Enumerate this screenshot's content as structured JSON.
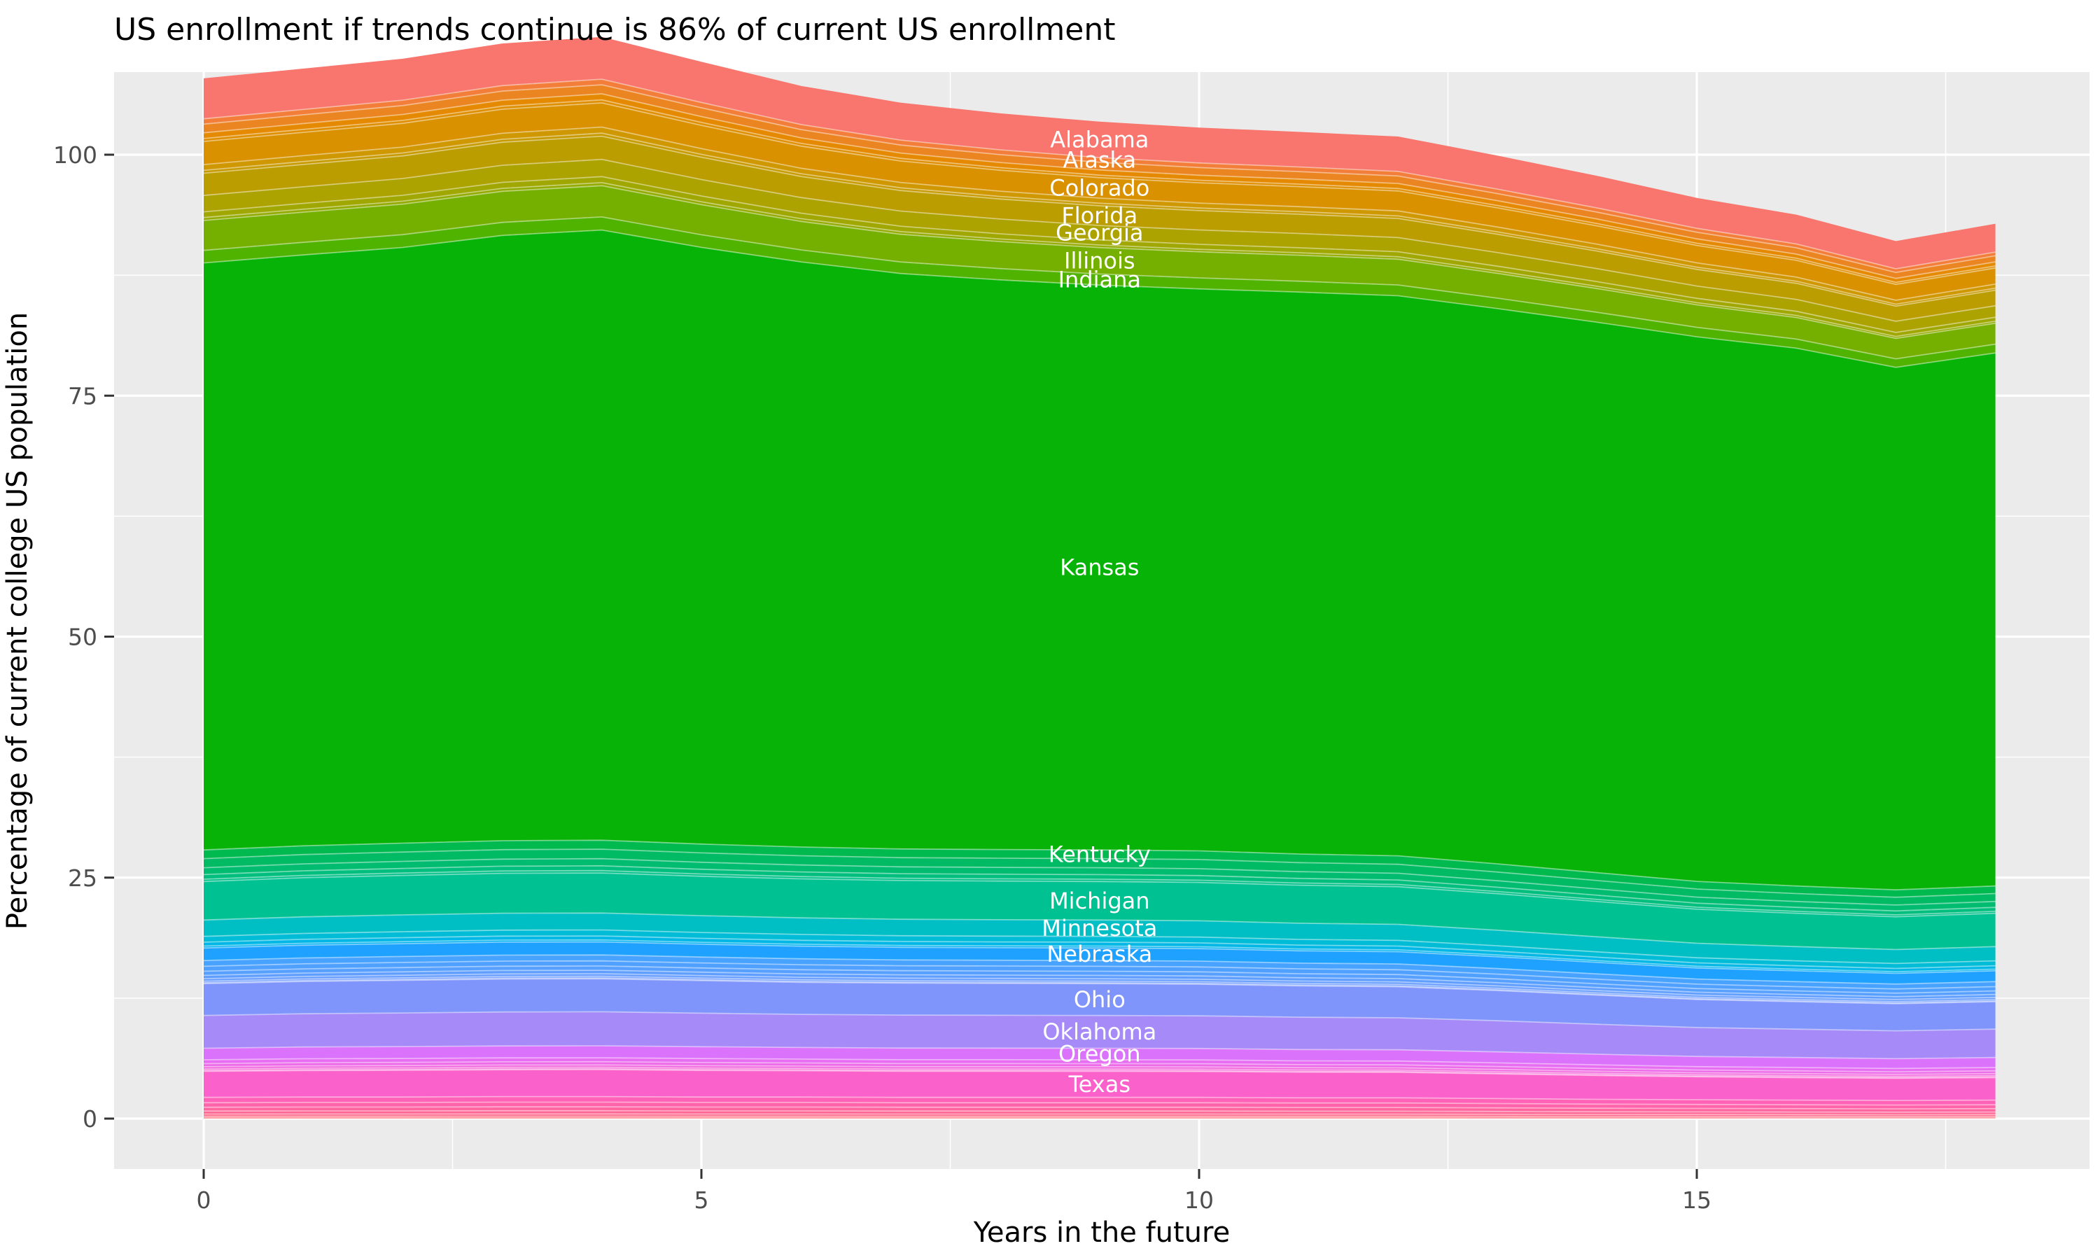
{
  "title": "US enrollment if trends continue is 86% of current US enrollment",
  "axes": {
    "x": {
      "title": "Years in the future",
      "major_ticks": [
        0,
        5,
        10,
        15
      ],
      "minor_ticks": [
        2.5,
        7.5,
        12.5,
        17.5
      ],
      "data_range": [
        0,
        18
      ]
    },
    "y": {
      "title": "Percentage of current college US population",
      "major_ticks": [
        0,
        25,
        50,
        75,
        100
      ],
      "minor_ticks": [
        12.5,
        37.5,
        62.5,
        87.5
      ]
    }
  },
  "theme": {
    "panel_background": "#EBEBEB",
    "gridline_color": "#FFFFFF",
    "tick_mark_color": "#333333",
    "tick_label_color": "#4D4D4D",
    "title_color": "#000000",
    "band_label_color": "#FFFFFF"
  },
  "chart_data": {
    "type": "area",
    "stacked": true,
    "title": "US enrollment if trends continue is 86% of current US enrollment",
    "xlabel": "Years in the future",
    "ylabel": "Percentage of current college US population",
    "x": [
      0,
      1,
      2,
      3,
      4,
      5,
      6,
      7,
      8,
      9,
      10,
      11,
      12,
      13,
      14,
      15,
      16,
      17,
      18
    ],
    "ylim_shown": [
      -5,
      108
    ],
    "grid": true,
    "legend_position": "none (labels drawn inside bands)",
    "label_anchor_x": 9,
    "final_total_pct": 86,
    "series_order": "bottom to top",
    "series": [
      {
        "id": "thin-bands-below-texas",
        "label": null,
        "stripe_count": 7,
        "colors": [
          "#FF6E74",
          "#FF6C80",
          "#FF6A8B",
          "#FF6895",
          "#FF66A0",
          "#FF64AB",
          "#FF62B6"
        ],
        "values": [
          0.55,
          0.56,
          0.56,
          0.57,
          0.57,
          0.56,
          0.56,
          0.55,
          0.55,
          0.55,
          0.55,
          0.54,
          0.54,
          0.52,
          0.5,
          0.49,
          0.48,
          0.47,
          0.48
        ]
      },
      {
        "id": "texas",
        "label": "Texas",
        "stripe_count": 1,
        "colors": [
          "#FB61CB"
        ],
        "values": [
          2.7,
          2.74,
          2.77,
          2.79,
          2.8,
          2.76,
          2.73,
          2.71,
          2.71,
          2.7,
          2.69,
          2.66,
          2.64,
          2.56,
          2.47,
          2.38,
          2.33,
          2.3,
          2.33
        ]
      },
      {
        "id": "thin-bands-between-texas-and-oregon",
        "label": null,
        "stripe_count": 5,
        "colors": [
          "#FA63D0",
          "#F665D6",
          "#F268DE",
          "#ED6BE8",
          "#E76EF2"
        ],
        "values": [
          0.4,
          0.41,
          0.41,
          0.41,
          0.41,
          0.41,
          0.4,
          0.4,
          0.4,
          0.4,
          0.4,
          0.39,
          0.39,
          0.38,
          0.37,
          0.35,
          0.35,
          0.34,
          0.35
        ]
      },
      {
        "id": "oregon",
        "label": "Oregon",
        "stripe_count": 1,
        "colors": [
          "#DB72FB"
        ],
        "values": [
          1.2,
          1.22,
          1.23,
          1.24,
          1.24,
          1.23,
          1.21,
          1.21,
          1.2,
          1.2,
          1.19,
          1.18,
          1.17,
          1.14,
          1.1,
          1.06,
          1.04,
          1.02,
          1.04
        ]
      },
      {
        "id": "oklahoma",
        "label": "Oklahoma",
        "stripe_count": 1,
        "colors": [
          "#A68AF8"
        ],
        "values": [
          3.4,
          3.45,
          3.49,
          3.52,
          3.53,
          3.48,
          3.43,
          3.42,
          3.41,
          3.4,
          3.38,
          3.35,
          3.32,
          3.23,
          3.11,
          3.0,
          2.94,
          2.89,
          2.94
        ]
      },
      {
        "id": "ohio",
        "label": "Ohio",
        "stripe_count": 1,
        "colors": [
          "#7F95FC"
        ],
        "values": [
          3.3,
          3.35,
          3.38,
          3.42,
          3.42,
          3.38,
          3.33,
          3.32,
          3.31,
          3.3,
          3.28,
          3.25,
          3.22,
          3.13,
          3.02,
          2.91,
          2.85,
          2.81,
          2.85
        ]
      },
      {
        "id": "thin-bands-between-ohio-and-nebraska",
        "label": null,
        "stripe_count": 7,
        "colors": [
          "#779AFF",
          "#6F9BFF",
          "#679DFF",
          "#5F9EFF",
          "#57A0FF",
          "#50A1FF",
          "#48A2FF"
        ],
        "values": [
          0.6,
          0.61,
          0.62,
          0.62,
          0.62,
          0.61,
          0.61,
          0.6,
          0.6,
          0.6,
          0.6,
          0.59,
          0.59,
          0.57,
          0.55,
          0.53,
          0.52,
          0.51,
          0.52
        ]
      },
      {
        "id": "nebraska",
        "label": "Nebraska",
        "stripe_count": 1,
        "colors": [
          "#1FA2FF"
        ],
        "values": [
          1.3,
          1.32,
          1.33,
          1.35,
          1.35,
          1.33,
          1.31,
          1.31,
          1.3,
          1.3,
          1.29,
          1.28,
          1.27,
          1.23,
          1.19,
          1.15,
          1.12,
          1.11,
          1.12
        ]
      },
      {
        "id": "thin-bands-between-nebraska-and-minnesota",
        "label": null,
        "stripe_count": 3,
        "colors": [
          "#00B1F2",
          "#00B7E5",
          "#00BCD6"
        ],
        "values": [
          0.6,
          0.61,
          0.62,
          0.62,
          0.62,
          0.61,
          0.61,
          0.6,
          0.6,
          0.6,
          0.6,
          0.59,
          0.59,
          0.57,
          0.55,
          0.53,
          0.52,
          0.51,
          0.52
        ]
      },
      {
        "id": "minnesota",
        "label": "Minnesota",
        "stripe_count": 1,
        "colors": [
          "#00BFC4"
        ],
        "values": [
          1.7,
          1.72,
          1.74,
          1.76,
          1.76,
          1.74,
          1.72,
          1.71,
          1.7,
          1.7,
          1.69,
          1.68,
          1.66,
          1.61,
          1.56,
          1.5,
          1.47,
          1.45,
          1.47
        ]
      },
      {
        "id": "michigan",
        "label": "Michigan",
        "stripe_count": 1,
        "colors": [
          "#00C192"
        ],
        "values": [
          4.0,
          4.06,
          4.1,
          4.14,
          4.15,
          4.09,
          4.04,
          4.02,
          4.01,
          4.0,
          3.98,
          3.94,
          3.91,
          3.79,
          3.66,
          3.53,
          3.46,
          3.4,
          3.46
        ]
      },
      {
        "id": "thin-bands-between-michigan-and-kentucky",
        "label": null,
        "stripe_count": 4,
        "colors": [
          "#00C088",
          "#00BE7D",
          "#00BC71",
          "#00BA64"
        ],
        "values": [
          0.95,
          0.96,
          0.97,
          0.98,
          0.99,
          0.97,
          0.96,
          0.95,
          0.95,
          0.95,
          0.95,
          0.94,
          0.93,
          0.9,
          0.87,
          0.84,
          0.82,
          0.81,
          0.82
        ]
      },
      {
        "id": "kentucky",
        "label": "Kentucky",
        "stripe_count": 1,
        "colors": [
          "#00B94F"
        ],
        "values": [
          0.9,
          0.91,
          0.92,
          0.93,
          0.93,
          0.92,
          0.91,
          0.9,
          0.9,
          0.9,
          0.9,
          0.89,
          0.88,
          0.85,
          0.82,
          0.79,
          0.78,
          0.77,
          0.78
        ]
      },
      {
        "id": "kansas",
        "label": "Kansas",
        "stripe_count": 1,
        "colors": [
          "#08B307"
        ],
        "values": [
          60.9,
          61.3,
          61.8,
          62.8,
          63.3,
          61.9,
          60.7,
          59.7,
          59.1,
          58.6,
          58.3,
          58.3,
          58.1,
          57.6,
          57.1,
          56.5,
          55.8,
          54.2,
          55.3
        ]
      },
      {
        "id": "indiana",
        "label": "Indiana",
        "stripe_count": 1,
        "colors": [
          "#4FB300"
        ],
        "values": [
          1.3,
          1.31,
          1.33,
          1.35,
          1.36,
          1.31,
          1.24,
          1.2,
          1.17,
          1.15,
          1.14,
          1.13,
          1.12,
          1.08,
          1.03,
          0.98,
          0.94,
          0.89,
          0.91
        ]
      },
      {
        "id": "illinois",
        "label": "Illinois",
        "stripe_count": 1,
        "colors": [
          "#75B000"
        ],
        "values": [
          3.1,
          3.13,
          3.17,
          3.22,
          3.24,
          3.12,
          2.96,
          2.87,
          2.8,
          2.74,
          2.71,
          2.69,
          2.67,
          2.57,
          2.46,
          2.33,
          2.24,
          2.12,
          2.17
        ]
      },
      {
        "id": "thin-bands-between-illinois-and-georgia",
        "label": null,
        "stripe_count": 2,
        "colors": [
          "#93AB00",
          "#A0A700"
        ],
        "values": [
          0.6,
          0.61,
          0.61,
          0.62,
          0.63,
          0.6,
          0.57,
          0.56,
          0.54,
          0.53,
          0.52,
          0.52,
          0.52,
          0.5,
          0.48,
          0.45,
          0.43,
          0.41,
          0.42
        ]
      },
      {
        "id": "georgia",
        "label": "Georgia",
        "stripe_count": 1,
        "colors": [
          "#ACA300"
        ],
        "values": [
          1.7,
          1.71,
          1.74,
          1.77,
          1.78,
          1.71,
          1.62,
          1.57,
          1.53,
          1.5,
          1.49,
          1.48,
          1.47,
          1.41,
          1.35,
          1.28,
          1.23,
          1.16,
          1.19
        ]
      },
      {
        "id": "florida",
        "label": "Florida",
        "stripe_count": 1,
        "colors": [
          "#BC9D00"
        ],
        "values": [
          2.3,
          2.32,
          2.35,
          2.39,
          2.41,
          2.31,
          2.19,
          2.13,
          2.08,
          2.04,
          2.01,
          2.0,
          1.98,
          1.9,
          1.82,
          1.73,
          1.67,
          1.57,
          1.61
        ]
      },
      {
        "id": "thin-bands-between-florida-and-colorado",
        "label": null,
        "stripe_count": 2,
        "colors": [
          "#C79A00",
          "#CF9700"
        ],
        "values": [
          0.6,
          0.61,
          0.61,
          0.62,
          0.63,
          0.6,
          0.57,
          0.56,
          0.54,
          0.53,
          0.52,
          0.52,
          0.52,
          0.5,
          0.48,
          0.45,
          0.43,
          0.41,
          0.42
        ]
      },
      {
        "id": "colorado",
        "label": "Colorado",
        "stripe_count": 1,
        "colors": [
          "#DA9100"
        ],
        "values": [
          2.4,
          2.42,
          2.46,
          2.5,
          2.51,
          2.41,
          2.29,
          2.22,
          2.17,
          2.12,
          2.1,
          2.08,
          2.07,
          1.99,
          1.9,
          1.81,
          1.74,
          1.64,
          1.68
        ]
      },
      {
        "id": "thin-bands-between-colorado-and-alaska",
        "label": null,
        "stripe_count": 3,
        "colors": [
          "#DF8E00",
          "#E58A00",
          "#EB8521"
        ],
        "values": [
          0.9,
          0.91,
          0.92,
          0.94,
          0.94,
          0.91,
          0.86,
          0.83,
          0.81,
          0.8,
          0.79,
          0.78,
          0.78,
          0.74,
          0.71,
          0.68,
          0.65,
          0.62,
          0.63
        ]
      },
      {
        "id": "alaska",
        "label": "Alaska",
        "stripe_count": 1,
        "colors": [
          "#F27E39"
        ],
        "values": [
          0.55,
          0.55,
          0.56,
          0.57,
          0.58,
          0.55,
          0.52,
          0.51,
          0.5,
          0.49,
          0.48,
          0.48,
          0.47,
          0.46,
          0.44,
          0.41,
          0.4,
          0.38,
          0.39
        ]
      },
      {
        "id": "alabama",
        "label": "Alabama",
        "stripe_count": 1,
        "colors": [
          "#F8766D"
        ],
        "values": [
          4.2,
          4.24,
          4.3,
          4.37,
          4.39,
          4.22,
          4.01,
          3.89,
          3.79,
          3.72,
          3.67,
          3.64,
          3.62,
          3.48,
          3.33,
          3.16,
          3.04,
          2.87,
          2.94
        ]
      }
    ]
  }
}
